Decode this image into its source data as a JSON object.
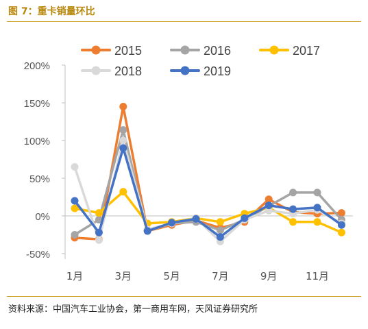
{
  "figure_title": "图 7：重卡销量环比",
  "source": "资料来源：中国汽车工业协会，第一商用车网，天风证券研究所",
  "chart_data": {
    "type": "line",
    "title": "",
    "xlabel": "",
    "ylabel": "",
    "ylim": [
      -50,
      200
    ],
    "y_ticks": [
      "200%",
      "150%",
      "100%",
      "50%",
      "0%",
      "-50%"
    ],
    "y_tick_values": [
      200,
      150,
      100,
      50,
      0,
      -50
    ],
    "x": [
      1,
      2,
      3,
      4,
      5,
      6,
      7,
      8,
      9,
      10,
      11,
      12
    ],
    "x_tick_labels": [
      "1月",
      "",
      "3月",
      "",
      "5月",
      "",
      "7月",
      "",
      "9月",
      "",
      "11月",
      ""
    ],
    "grid": false,
    "legend_position": "top",
    "series": [
      {
        "name": "2015",
        "color": "#ED7D31",
        "values": [
          -29,
          -31,
          145,
          -20,
          -12,
          -6,
          -16,
          -8,
          22,
          5,
          3,
          4
        ]
      },
      {
        "name": "2016",
        "color": "#A5A5A5",
        "values": [
          -25,
          -5,
          114,
          -20,
          -10,
          -8,
          -19,
          -5,
          13,
          31,
          31,
          -5
        ]
      },
      {
        "name": "2017",
        "color": "#FFC000",
        "values": [
          10,
          4,
          32,
          -10,
          -8,
          -3,
          -8,
          3,
          11,
          -8,
          -8,
          -22
        ]
      },
      {
        "name": "2018",
        "color": "#D9D9D9",
        "values": [
          65,
          -32,
          100,
          -18,
          -10,
          -3,
          -34,
          -5,
          7,
          3,
          8,
          -10
        ]
      },
      {
        "name": "2019",
        "color": "#4472C4",
        "values": [
          20,
          -22,
          90,
          -20,
          -9,
          -4,
          -28,
          -3,
          14,
          9,
          11,
          -12
        ]
      }
    ]
  }
}
